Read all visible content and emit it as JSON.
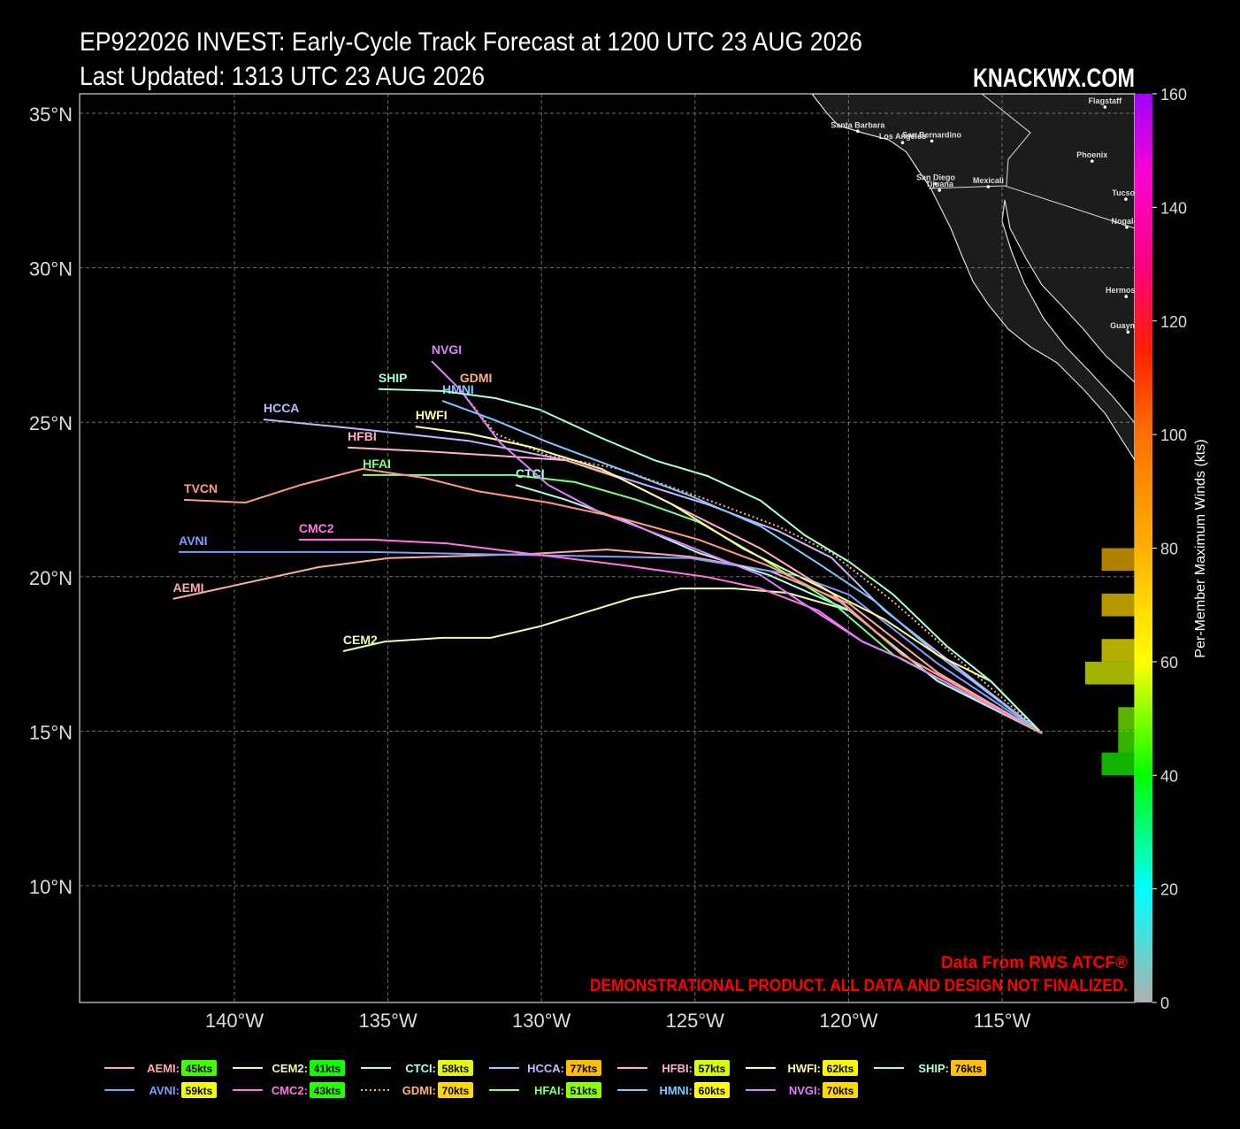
{
  "chart_data": {
    "type": "line",
    "title": "EP922026 INVEST: Early-Cycle Track Forecast at 1200 UTC 23 AUG 2026",
    "subtitle": "Last Updated: 1313 UTC 23 AUG 2026",
    "brand": "KNACKWX.COM",
    "source_note": "Data From RWS ATCF®",
    "disclaimer": "DEMONSTRATIONAL PRODUCT. ALL DATA AND DESIGN NOT FINALIZED.",
    "xlim": [
      -145.04,
      -110.68
    ],
    "ylim": [
      6.22,
      35.63
    ],
    "xticks": [
      {
        "value": -140,
        "label": "140°W"
      },
      {
        "value": -135,
        "label": "135°W"
      },
      {
        "value": -130,
        "label": "130°W"
      },
      {
        "value": -125,
        "label": "125°W"
      },
      {
        "value": -120,
        "label": "120°W"
      },
      {
        "value": -115,
        "label": "115°W"
      }
    ],
    "yticks": [
      {
        "value": 10,
        "label": "10°N"
      },
      {
        "value": 15,
        "label": "15°N"
      },
      {
        "value": 20,
        "label": "20°N"
      },
      {
        "value": 25,
        "label": "25°N"
      },
      {
        "value": 30,
        "label": "30°N"
      },
      {
        "value": 35,
        "label": "35°N"
      }
    ],
    "grid": true,
    "legend_separator": ":",
    "series": [
      {
        "name": "AEMI",
        "color": "#ffaaaa",
        "max_wind": 45,
        "max_wind_label": "45kts",
        "x": [
          -113.7,
          -117.1,
          -119.98,
          -122.58,
          -125.17,
          -127.87,
          -130.35,
          -134.96,
          -137.26,
          -142.0
        ],
        "values": [
          14.93,
          16.9,
          19.13,
          20.19,
          20.65,
          20.88,
          20.74,
          20.6,
          20.31,
          19.28
        ]
      },
      {
        "name": "AVNI",
        "color": "#7f9fff",
        "max_wind": 59,
        "max_wind_label": "59kts",
        "x": [
          -113.7,
          -117.1,
          -119.98,
          -121.71,
          -125.17,
          -135.54,
          -141.81
        ],
        "values": [
          14.93,
          17.19,
          19.42,
          20.05,
          20.6,
          20.8,
          20.8
        ]
      },
      {
        "name": "CEM2",
        "color": "#e6ffb0",
        "max_wind": 41,
        "max_wind_label": "41kts",
        "x": [
          -113.7,
          -117.1,
          -119.98,
          -122.0,
          -123.73,
          -125.46,
          -127.04,
          -130.06,
          -131.65,
          -133.23,
          -135.1,
          -136.46
        ],
        "values": [
          14.93,
          16.62,
          18.91,
          19.48,
          19.62,
          19.62,
          19.31,
          18.39,
          18.02,
          18.02,
          17.9,
          17.59
        ]
      },
      {
        "name": "CMC2",
        "color": "#ff77e6",
        "max_wind": 43,
        "max_wind_label": "43kts",
        "x": [
          -113.7,
          -118.25,
          -119.55,
          -120.99,
          -122.86,
          -124.59,
          -127.47,
          -130.35,
          -133.09,
          -135.54,
          -137.9
        ],
        "values": [
          14.93,
          17.33,
          17.9,
          18.91,
          19.62,
          19.99,
          20.39,
          20.74,
          21.08,
          21.2,
          21.2
        ]
      },
      {
        "name": "CTCI",
        "color": "#b0fff0",
        "max_wind": 58,
        "max_wind_label": "58kts",
        "x": [
          -113.7,
          -117.1,
          -119.98,
          -122.58,
          -124.88,
          -127.18,
          -129.2,
          -130.84
        ],
        "values": [
          14.93,
          16.62,
          18.91,
          20.05,
          20.77,
          21.77,
          22.49,
          22.97
        ]
      },
      {
        "name": "GDMI",
        "color": "#ffb380",
        "style": "dotted",
        "max_wind": 70,
        "max_wind_label": "70kts",
        "x": [
          -113.7,
          -118.54,
          -120.56,
          -122.29,
          -124.59,
          -127.47,
          -129.78,
          -131.5,
          -132.66
        ],
        "values": [
          14.93,
          19.19,
          20.77,
          21.63,
          22.49,
          23.49,
          23.92,
          24.63,
          26.07
        ]
      },
      {
        "name": "HCCA",
        "color": "#c8b4ff",
        "max_wind": 77,
        "max_wind_label": "77kts",
        "x": [
          -113.7,
          -118.83,
          -120.56,
          -122.29,
          -124.59,
          -126.9,
          -129.2,
          -132.37,
          -136.11,
          -139.05
        ],
        "values": [
          14.93,
          18.91,
          20.62,
          21.48,
          22.34,
          23.06,
          23.77,
          24.4,
          24.8,
          25.09
        ]
      },
      {
        "name": "HFAI",
        "color": "#80ff80",
        "max_wind": 51,
        "max_wind_label": "51kts",
        "x": [
          -113.7,
          -118.54,
          -120.56,
          -122.86,
          -124.88,
          -126.9,
          -128.91,
          -130.93,
          -135.82
        ],
        "values": [
          14.93,
          17.47,
          19.19,
          20.62,
          21.77,
          22.49,
          23.06,
          23.29,
          23.29
        ]
      },
      {
        "name": "HFBI",
        "color": "#ffb0c8",
        "max_wind": 57,
        "max_wind_label": "57kts",
        "x": [
          -113.7,
          -118.25,
          -120.56,
          -122.86,
          -125.17,
          -127.47,
          -129.2,
          -131.5,
          -133.81,
          -136.31
        ],
        "values": [
          14.93,
          17.47,
          19.48,
          20.91,
          22.06,
          23.2,
          23.77,
          23.92,
          24.06,
          24.18
        ]
      },
      {
        "name": "HMNI",
        "color": "#80c8ff",
        "max_wind": 60,
        "max_wind_label": "60kts",
        "x": [
          -113.7,
          -117.1,
          -119.12,
          -120.85,
          -122.86,
          -125.17,
          -127.47,
          -129.78,
          -131.5,
          -133.23
        ],
        "values": [
          14.93,
          17.47,
          19.19,
          20.34,
          21.63,
          22.63,
          23.49,
          24.35,
          25.06,
          25.69
        ]
      },
      {
        "name": "HWFI",
        "color": "#ffffa0",
        "max_wind": 62,
        "max_wind_label": "62kts",
        "x": [
          -113.7,
          -115.37,
          -117.1,
          -118.83,
          -121.13,
          -123.44,
          -125.74,
          -128.05,
          -130.35,
          -132.37,
          -134.1
        ],
        "values": [
          14.93,
          16.62,
          17.47,
          18.62,
          19.77,
          20.91,
          22.34,
          23.49,
          24.2,
          24.63,
          24.86
        ]
      },
      {
        "name": "NVGI",
        "color": "#e080ff",
        "max_wind": 70,
        "max_wind_label": "70kts",
        "x": [
          -113.7,
          -118.25,
          -119.55,
          -121.13,
          -122.86,
          -125.74,
          -128.05,
          -129.78,
          -131.36,
          -132.66,
          -133.58
        ],
        "values": [
          14.93,
          17.33,
          17.9,
          18.91,
          20.05,
          21.2,
          22.06,
          22.97,
          24.35,
          26.07,
          26.98
        ]
      },
      {
        "name": "SHIP",
        "color": "#a8ffd8",
        "max_wind": 76,
        "max_wind_label": "76kts",
        "x": [
          -113.7,
          -115.37,
          -116.81,
          -118.54,
          -119.98,
          -121.42,
          -122.86,
          -124.59,
          -126.32,
          -128.05,
          -130.06,
          -131.5,
          -133.23,
          -135.31
        ],
        "values": [
          14.93,
          16.62,
          17.76,
          19.42,
          20.48,
          21.34,
          22.46,
          23.26,
          23.77,
          24.49,
          25.41,
          25.78,
          26.01,
          26.07
        ]
      },
      {
        "name": "TVCN",
        "color": "#ff9c80",
        "x": [
          -113.7,
          -118.25,
          -120.27,
          -122.58,
          -124.88,
          -127.47,
          -129.78,
          -132.08,
          -133.81,
          -135.82,
          -137.84,
          -139.63,
          -141.64
        ],
        "values": [
          14.93,
          17.47,
          19.19,
          20.34,
          21.2,
          21.91,
          22.4,
          22.77,
          23.2,
          23.49,
          22.97,
          22.4,
          22.49
        ]
      }
    ],
    "cities": [
      {
        "name": "Flagstaff",
        "lon": -111.65,
        "lat": 35.2
      },
      {
        "name": "Santa Barbara",
        "lon": -119.7,
        "lat": 34.42
      },
      {
        "name": "Los Angeles",
        "lon": -118.24,
        "lat": 34.05
      },
      {
        "name": "San Bernardino",
        "lon": -117.29,
        "lat": 34.1
      },
      {
        "name": "Phoenix",
        "lon": -112.07,
        "lat": 33.45
      },
      {
        "name": "San Diego",
        "lon": -117.16,
        "lat": 32.72
      },
      {
        "name": "Mexicali",
        "lon": -115.45,
        "lat": 32.62
      },
      {
        "name": "Tijuana",
        "lon": -117.04,
        "lat": 32.51
      },
      {
        "name": "Tucson",
        "lon": -110.97,
        "lat": 32.22
      },
      {
        "name": "Nogales",
        "lon": -110.94,
        "lat": 31.31
      },
      {
        "name": "Hermosillo",
        "lon": -110.96,
        "lat": 29.07
      },
      {
        "name": "Guaymas",
        "lon": -110.9,
        "lat": 27.92
      }
    ],
    "colorbar": {
      "label": "Per-Member Maximum Winds (kts)",
      "lim": [
        0,
        160
      ],
      "ticks": [
        0,
        20,
        40,
        60,
        80,
        100,
        120,
        140,
        160
      ],
      "colormap": [
        [
          0,
          "#b0b0b0"
        ],
        [
          20,
          "#00ffff"
        ],
        [
          40,
          "#00ff00"
        ],
        [
          60,
          "#ffff00"
        ],
        [
          80,
          "#ffb000"
        ],
        [
          100,
          "#ff7000"
        ],
        [
          115,
          "#ff2000"
        ],
        [
          130,
          "#ff0080"
        ],
        [
          145,
          "#ff00d0"
        ],
        [
          160,
          "#a000ff"
        ]
      ]
    },
    "histogram": {
      "bins": [
        40,
        44,
        48,
        52,
        56,
        60,
        64,
        68,
        72,
        76,
        80
      ],
      "counts": [
        2,
        1,
        1,
        0,
        3,
        2,
        0,
        2,
        0,
        2
      ]
    }
  }
}
